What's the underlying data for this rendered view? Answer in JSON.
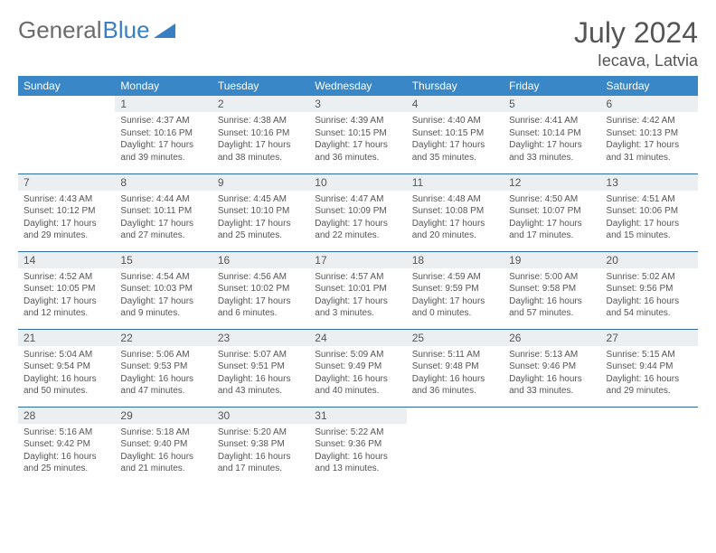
{
  "brand": {
    "part1": "General",
    "part2": "Blue"
  },
  "title": "July 2024",
  "location": "Iecava, Latvia",
  "colors": {
    "header_bg": "#3a87c7",
    "header_fg": "#ffffff",
    "daynum_bg": "#eceff1",
    "row_border": "#2e6da4",
    "text": "#555555",
    "logo_accent": "#3a7fc4"
  },
  "days_of_week": [
    "Sunday",
    "Monday",
    "Tuesday",
    "Wednesday",
    "Thursday",
    "Friday",
    "Saturday"
  ],
  "weeks": [
    [
      null,
      {
        "n": "1",
        "sunrise": "4:37 AM",
        "sunset": "10:16 PM",
        "daylight": "17 hours and 39 minutes."
      },
      {
        "n": "2",
        "sunrise": "4:38 AM",
        "sunset": "10:16 PM",
        "daylight": "17 hours and 38 minutes."
      },
      {
        "n": "3",
        "sunrise": "4:39 AM",
        "sunset": "10:15 PM",
        "daylight": "17 hours and 36 minutes."
      },
      {
        "n": "4",
        "sunrise": "4:40 AM",
        "sunset": "10:15 PM",
        "daylight": "17 hours and 35 minutes."
      },
      {
        "n": "5",
        "sunrise": "4:41 AM",
        "sunset": "10:14 PM",
        "daylight": "17 hours and 33 minutes."
      },
      {
        "n": "6",
        "sunrise": "4:42 AM",
        "sunset": "10:13 PM",
        "daylight": "17 hours and 31 minutes."
      }
    ],
    [
      {
        "n": "7",
        "sunrise": "4:43 AM",
        "sunset": "10:12 PM",
        "daylight": "17 hours and 29 minutes."
      },
      {
        "n": "8",
        "sunrise": "4:44 AM",
        "sunset": "10:11 PM",
        "daylight": "17 hours and 27 minutes."
      },
      {
        "n": "9",
        "sunrise": "4:45 AM",
        "sunset": "10:10 PM",
        "daylight": "17 hours and 25 minutes."
      },
      {
        "n": "10",
        "sunrise": "4:47 AM",
        "sunset": "10:09 PM",
        "daylight": "17 hours and 22 minutes."
      },
      {
        "n": "11",
        "sunrise": "4:48 AM",
        "sunset": "10:08 PM",
        "daylight": "17 hours and 20 minutes."
      },
      {
        "n": "12",
        "sunrise": "4:50 AM",
        "sunset": "10:07 PM",
        "daylight": "17 hours and 17 minutes."
      },
      {
        "n": "13",
        "sunrise": "4:51 AM",
        "sunset": "10:06 PM",
        "daylight": "17 hours and 15 minutes."
      }
    ],
    [
      {
        "n": "14",
        "sunrise": "4:52 AM",
        "sunset": "10:05 PM",
        "daylight": "17 hours and 12 minutes."
      },
      {
        "n": "15",
        "sunrise": "4:54 AM",
        "sunset": "10:03 PM",
        "daylight": "17 hours and 9 minutes."
      },
      {
        "n": "16",
        "sunrise": "4:56 AM",
        "sunset": "10:02 PM",
        "daylight": "17 hours and 6 minutes."
      },
      {
        "n": "17",
        "sunrise": "4:57 AM",
        "sunset": "10:01 PM",
        "daylight": "17 hours and 3 minutes."
      },
      {
        "n": "18",
        "sunrise": "4:59 AM",
        "sunset": "9:59 PM",
        "daylight": "17 hours and 0 minutes."
      },
      {
        "n": "19",
        "sunrise": "5:00 AM",
        "sunset": "9:58 PM",
        "daylight": "16 hours and 57 minutes."
      },
      {
        "n": "20",
        "sunrise": "5:02 AM",
        "sunset": "9:56 PM",
        "daylight": "16 hours and 54 minutes."
      }
    ],
    [
      {
        "n": "21",
        "sunrise": "5:04 AM",
        "sunset": "9:54 PM",
        "daylight": "16 hours and 50 minutes."
      },
      {
        "n": "22",
        "sunrise": "5:06 AM",
        "sunset": "9:53 PM",
        "daylight": "16 hours and 47 minutes."
      },
      {
        "n": "23",
        "sunrise": "5:07 AM",
        "sunset": "9:51 PM",
        "daylight": "16 hours and 43 minutes."
      },
      {
        "n": "24",
        "sunrise": "5:09 AM",
        "sunset": "9:49 PM",
        "daylight": "16 hours and 40 minutes."
      },
      {
        "n": "25",
        "sunrise": "5:11 AM",
        "sunset": "9:48 PM",
        "daylight": "16 hours and 36 minutes."
      },
      {
        "n": "26",
        "sunrise": "5:13 AM",
        "sunset": "9:46 PM",
        "daylight": "16 hours and 33 minutes."
      },
      {
        "n": "27",
        "sunrise": "5:15 AM",
        "sunset": "9:44 PM",
        "daylight": "16 hours and 29 minutes."
      }
    ],
    [
      {
        "n": "28",
        "sunrise": "5:16 AM",
        "sunset": "9:42 PM",
        "daylight": "16 hours and 25 minutes."
      },
      {
        "n": "29",
        "sunrise": "5:18 AM",
        "sunset": "9:40 PM",
        "daylight": "16 hours and 21 minutes."
      },
      {
        "n": "30",
        "sunrise": "5:20 AM",
        "sunset": "9:38 PM",
        "daylight": "16 hours and 17 minutes."
      },
      {
        "n": "31",
        "sunrise": "5:22 AM",
        "sunset": "9:36 PM",
        "daylight": "16 hours and 13 minutes."
      },
      null,
      null,
      null
    ]
  ],
  "labels": {
    "sunrise": "Sunrise:",
    "sunset": "Sunset:",
    "daylight": "Daylight:"
  }
}
